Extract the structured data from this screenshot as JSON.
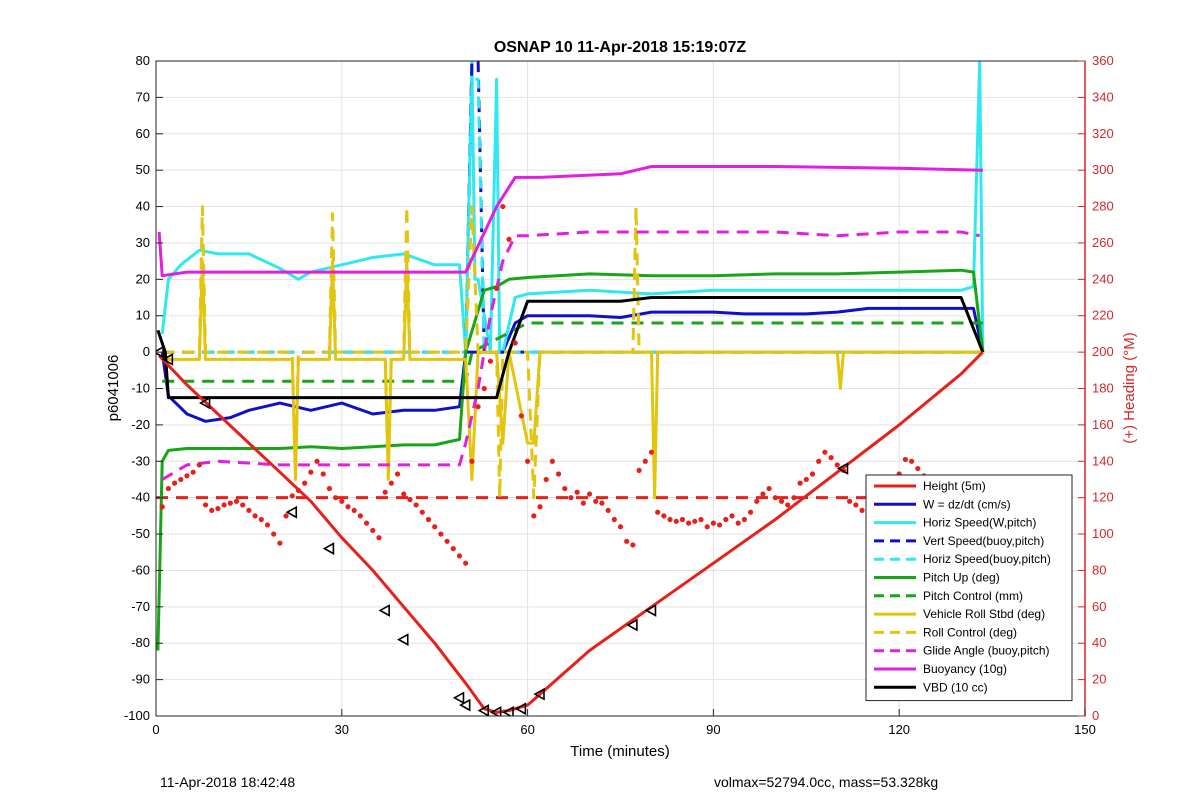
{
  "chart_data": {
    "type": "line",
    "title": "OSNAP 10 11-Apr-2018 15:19:07Z",
    "xlabel": "Time (minutes)",
    "ylabel": "p6041006",
    "ylabel_right": "(+) Heading (°M)",
    "xlim": [
      0,
      150
    ],
    "ylim": [
      -100,
      80
    ],
    "ylim_right": [
      0,
      360
    ],
    "x_ticks": [
      0,
      30,
      60,
      90,
      120,
      150
    ],
    "y_ticks": [
      -100,
      -90,
      -80,
      -70,
      -60,
      -50,
      -40,
      -30,
      -20,
      -10,
      0,
      10,
      20,
      30,
      40,
      50,
      60,
      70,
      80
    ],
    "y_right_ticks": [
      0,
      20,
      40,
      60,
      80,
      100,
      120,
      140,
      160,
      180,
      200,
      220,
      240,
      260,
      280,
      300,
      320,
      340,
      360
    ],
    "grid": true,
    "legend_position": "bottom-right",
    "colors": {
      "axis_right": "#d62728",
      "red": "#e8201b",
      "blue": "#1010c8",
      "cyan": "#30e8f0",
      "green": "#17a617",
      "yellow": "#e3c40f",
      "magenta": "#e020e0",
      "black": "#000000"
    },
    "series": [
      {
        "name": "Height (5m)",
        "color": "#e8201b",
        "style": "solid",
        "x": [
          0.5,
          5,
          10,
          15,
          20,
          25,
          30,
          35,
          40,
          45,
          50,
          53,
          55,
          57,
          60,
          62,
          70,
          80,
          90,
          100,
          110,
          120,
          130,
          133.5
        ],
        "y": [
          -1,
          -9,
          -17,
          -25,
          -33,
          -41,
          -51,
          -60,
          -70,
          -80,
          -91,
          -98,
          -99,
          -98.5,
          -97,
          -94,
          -82,
          -70,
          -58,
          -46,
          -33,
          -20,
          -6,
          0
        ]
      },
      {
        "name": "W = dz/dt (cm/s)",
        "color": "#1010c8",
        "style": "solid",
        "x": [
          1,
          2,
          5,
          8,
          12,
          15,
          20,
          25,
          30,
          35,
          40,
          45,
          49,
          50,
          52,
          56,
          58,
          60,
          65,
          70,
          75,
          80,
          85,
          90,
          95,
          100,
          105,
          110,
          115,
          120,
          125,
          130,
          132,
          133.5
        ],
        "y": [
          0,
          -12,
          -17,
          -19,
          -18,
          -16,
          -14,
          -16,
          -14,
          -17,
          -16,
          -16,
          -15,
          0,
          0,
          0,
          8,
          10,
          10,
          10,
          9.5,
          11,
          11,
          11,
          10.5,
          10.5,
          10.5,
          11,
          12,
          12,
          12,
          12,
          12,
          0
        ]
      },
      {
        "name": "Horiz Speed(W,pitch)",
        "color": "#30e8f0",
        "style": "solid",
        "x": [
          1,
          2,
          4,
          7,
          10,
          15,
          20,
          23,
          25,
          30,
          35,
          40,
          45,
          49,
          50,
          51,
          51.5,
          52,
          54,
          55,
          55.5,
          56,
          58,
          60,
          70,
          80,
          90,
          100,
          110,
          120,
          130,
          132,
          133,
          133.5
        ],
        "y": [
          5,
          20,
          24,
          28,
          27,
          27,
          23,
          20,
          22,
          24,
          26,
          27,
          24,
          24,
          0,
          80,
          20,
          20,
          0,
          75,
          0,
          0,
          15,
          16,
          17,
          16,
          17,
          17,
          17,
          17,
          17,
          18,
          80,
          0
        ]
      },
      {
        "name": "Vert Speed(buoy,pitch)",
        "color": "#1010c8",
        "style": "dashed",
        "x": [
          1,
          50,
          51,
          52,
          53,
          55,
          133.5
        ],
        "y": [
          0,
          0,
          80,
          80,
          0,
          0,
          0
        ]
      },
      {
        "name": "Horiz Speed(buoy,pitch)",
        "color": "#30e8f0",
        "style": "dashed",
        "x": [
          1,
          50,
          51,
          52,
          53,
          55,
          133.5
        ],
        "y": [
          0,
          0,
          75,
          75,
          0,
          0,
          0
        ]
      },
      {
        "name": "Pitch Up (deg)",
        "color": "#17a617",
        "style": "solid",
        "x": [
          0.3,
          1,
          2,
          5,
          10,
          15,
          20,
          25,
          30,
          35,
          40,
          45,
          49,
          50,
          53,
          55,
          57,
          60,
          70,
          80,
          90,
          100,
          110,
          120,
          130,
          132,
          133.5
        ],
        "y": [
          -82,
          -30,
          -27,
          -26.5,
          -26.5,
          -26.5,
          -26.5,
          -26,
          -26.5,
          -26,
          -25.5,
          -25.5,
          -24,
          0,
          17,
          18,
          20,
          20.5,
          21.5,
          21,
          21,
          21.5,
          21.5,
          22,
          22.5,
          22,
          0
        ]
      },
      {
        "name": "Pitch Control (mm)",
        "color": "#17a617",
        "style": "dashed",
        "x": [
          1,
          2,
          50,
          51,
          60,
          130,
          133.5
        ],
        "y": [
          -8,
          -8,
          -8,
          0,
          8,
          8,
          8
        ]
      },
      {
        "name": "Vehicle Roll Stbd (deg)",
        "color": "#e3c40f",
        "style": "solid",
        "x": [
          1,
          7,
          7.5,
          8,
          22,
          22.5,
          23,
          28,
          28.5,
          29,
          37,
          37.5,
          38,
          40,
          40.5,
          41,
          50,
          51,
          52,
          55,
          56,
          57,
          60,
          61,
          62,
          63,
          65,
          80,
          80.5,
          81,
          110,
          110.5,
          111,
          133.5
        ],
        "y": [
          -2,
          -2,
          25,
          -2,
          -2,
          -35,
          -2,
          -2,
          25,
          -2,
          -2,
          -35,
          -2,
          -2,
          25,
          -2,
          -2,
          -35,
          0,
          0,
          -25,
          0,
          -25,
          -25,
          0,
          0,
          0,
          0,
          -40,
          0,
          0,
          -10,
          0,
          0
        ]
      },
      {
        "name": "Roll Control (deg)",
        "color": "#e3c40f",
        "style": "dashed",
        "x": [
          1,
          7,
          7.5,
          8,
          22,
          22.5,
          23,
          28,
          28.5,
          29,
          37,
          37.5,
          38,
          40,
          40.5,
          41,
          50,
          51,
          52,
          55,
          55.5,
          56,
          60,
          61,
          62,
          63,
          77,
          77.5,
          78,
          133.5
        ],
        "y": [
          0,
          0,
          40,
          0,
          0,
          -33,
          0,
          0,
          38,
          0,
          0,
          -31,
          0,
          0,
          40,
          0,
          0,
          40,
          0,
          0,
          -40,
          0,
          0,
          -40,
          0,
          0,
          0,
          40,
          0,
          0
        ]
      },
      {
        "name": "Glide Angle (buoy,pitch)",
        "color": "#e020e0",
        "style": "dashed",
        "x": [
          1,
          5,
          10,
          20,
          30,
          40,
          49,
          50,
          52,
          54,
          56,
          58,
          60,
          70,
          80,
          90,
          100,
          110,
          120,
          125,
          130,
          133
        ],
        "y": [
          -35,
          -31,
          -30,
          -31,
          -31,
          -31,
          -31,
          -25,
          -10,
          10,
          25,
          32,
          32,
          33,
          33,
          33,
          33,
          32,
          33,
          33,
          33,
          32
        ]
      },
      {
        "name": "Buoyancy (10g)",
        "color": "#e020e0",
        "style": "solid",
        "x": [
          0.5,
          1,
          5,
          20,
          40,
          50,
          55,
          58,
          62,
          75,
          80,
          100,
          120,
          133.5
        ],
        "y": [
          33,
          21,
          22,
          22,
          22,
          22,
          40,
          48,
          48,
          49,
          51,
          51,
          50.5,
          50
        ]
      },
      {
        "name": "VBD (10 cc)",
        "color": "#000000",
        "style": "solid",
        "x": [
          0.3,
          1.5,
          2,
          50,
          51,
          55,
          57,
          60,
          75,
          80,
          90,
          100,
          130,
          133.5
        ],
        "y": [
          6,
          0,
          -12.5,
          -12.5,
          -12.5,
          -12.5,
          0,
          14,
          14,
          15,
          15,
          15,
          15,
          0
        ]
      }
    ],
    "heading_target": {
      "color": "#e8201b",
      "y_right": 120,
      "x": [
        0,
        133.5
      ]
    },
    "heading_points": {
      "x": [
        1,
        2,
        3,
        4,
        5,
        6,
        7,
        8,
        9,
        10,
        11,
        12,
        13,
        14,
        15,
        16,
        17,
        18,
        19,
        20,
        21,
        22,
        23,
        24,
        25,
        26,
        27,
        28,
        29,
        30,
        31,
        32,
        33,
        34,
        35,
        36,
        37,
        38,
        39,
        40,
        41,
        42,
        43,
        44,
        45,
        46,
        47,
        48,
        49,
        50,
        51,
        52,
        53,
        54,
        55,
        56,
        57,
        58,
        59,
        60,
        61,
        62,
        63,
        64,
        65,
        66,
        67,
        68,
        69,
        70,
        71,
        72,
        73,
        74,
        75,
        76,
        77,
        78,
        79,
        80,
        81,
        82,
        83,
        84,
        85,
        86,
        87,
        88,
        89,
        90,
        91,
        92,
        93,
        94,
        95,
        96,
        97,
        98,
        99,
        100,
        101,
        102,
        103,
        104,
        105,
        106,
        107,
        108,
        109,
        110,
        111,
        112,
        113,
        114,
        115,
        116,
        117,
        118,
        119,
        120,
        121,
        122,
        123,
        124,
        125,
        126,
        127,
        128,
        129,
        130
      ],
      "y": [
        115,
        125,
        128,
        130,
        132,
        134,
        138,
        116,
        113,
        114,
        116,
        117,
        118,
        116,
        113,
        110,
        108,
        105,
        100,
        95,
        110,
        121,
        124,
        128,
        134,
        140,
        133,
        125,
        120,
        118,
        115,
        113,
        110,
        106,
        102,
        98,
        123,
        128,
        133,
        122,
        119,
        116,
        112,
        108,
        104,
        100,
        96,
        92,
        88,
        84,
        140,
        170,
        180,
        195,
        235,
        280,
        262,
        205,
        165,
        140,
        110,
        115,
        130,
        140,
        133,
        125,
        120,
        123,
        117,
        122,
        118,
        117,
        113,
        108,
        104,
        96,
        94,
        135,
        140,
        145,
        112,
        110,
        108,
        107,
        108,
        106,
        107,
        108,
        104,
        106,
        105,
        108,
        110,
        106,
        108,
        112,
        118,
        122,
        125,
        120,
        118,
        116,
        120,
        128,
        130,
        133,
        140,
        145,
        142,
        138,
        135,
        118,
        116,
        113,
        112,
        115,
        120,
        124,
        128,
        133,
        141,
        140,
        136,
        132,
        128,
        124,
        124,
        124,
        124,
        122
      ]
    },
    "turn_markers": {
      "x": [
        0.5,
        2,
        8,
        22,
        28,
        37,
        40,
        49,
        50,
        53,
        55,
        57,
        59,
        62,
        77,
        80,
        111
      ],
      "y": [
        0,
        -2,
        -14,
        -44,
        -54,
        -71,
        -79,
        -95,
        -97,
        -98.5,
        -99,
        -99,
        -98,
        -94,
        -75,
        -71,
        -32
      ]
    }
  },
  "footer": {
    "date": "11-Apr-2018 18:42:48",
    "info": "volmax=52794.0cc, mass=53.328kg"
  }
}
